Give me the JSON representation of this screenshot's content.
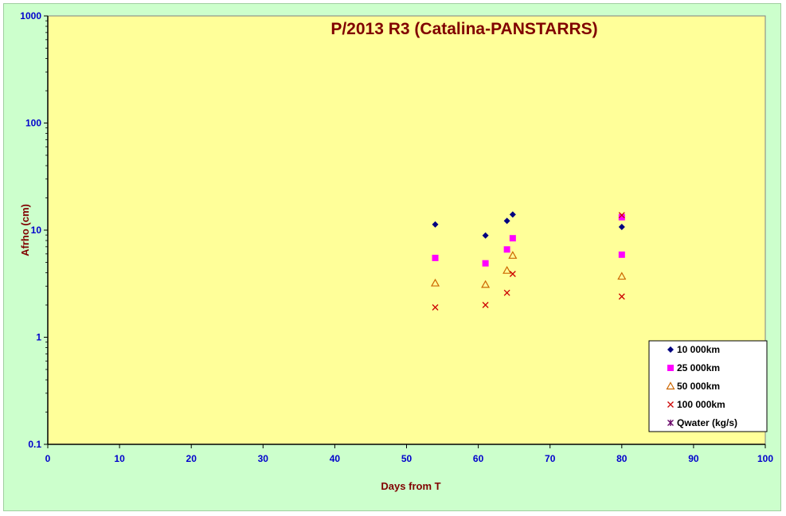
{
  "chart_data": {
    "type": "scatter",
    "title": "P/2013 R3 (Catalina-PANSTARRS)",
    "xlabel": "Days from  T",
    "ylabel": "Afrho (cm)",
    "xlim": [
      0,
      100
    ],
    "ylim": [
      0.1,
      1000
    ],
    "yscale": "log",
    "x_ticks": [
      "0",
      "10",
      "20",
      "30",
      "40",
      "50",
      "60",
      "70",
      "80",
      "90",
      "100"
    ],
    "y_ticks": [
      "0.1",
      "1",
      "10",
      "100",
      "1000"
    ],
    "grid": false,
    "legend_position": "bottom-right",
    "series": [
      {
        "name": "10 000km",
        "marker": "diamond",
        "color": "#000080",
        "points": [
          {
            "x": 54.0,
            "y": 11.3
          },
          {
            "x": 61.0,
            "y": 8.9
          },
          {
            "x": 64.0,
            "y": 12.2
          },
          {
            "x": 64.8,
            "y": 14.0
          },
          {
            "x": 80.0,
            "y": 10.7
          }
        ]
      },
      {
        "name": "25 000km",
        "marker": "square",
        "color": "#ff00ff",
        "points": [
          {
            "x": 54.0,
            "y": 5.5
          },
          {
            "x": 61.0,
            "y": 4.9
          },
          {
            "x": 64.0,
            "y": 6.6
          },
          {
            "x": 64.8,
            "y": 8.4
          },
          {
            "x": 80.0,
            "y": 13.2
          },
          {
            "x": 80.0,
            "y": 5.9
          }
        ]
      },
      {
        "name": "50 000km",
        "marker": "triangle",
        "color": "#cc6600",
        "points": [
          {
            "x": 54.0,
            "y": 3.2
          },
          {
            "x": 61.0,
            "y": 3.1
          },
          {
            "x": 64.0,
            "y": 4.2
          },
          {
            "x": 64.8,
            "y": 5.8
          },
          {
            "x": 80.0,
            "y": 3.7
          }
        ]
      },
      {
        "name": "100 000km",
        "marker": "x",
        "color": "#cc0000",
        "points": [
          {
            "x": 54.0,
            "y": 1.9
          },
          {
            "x": 61.0,
            "y": 2.0
          },
          {
            "x": 64.0,
            "y": 2.6
          },
          {
            "x": 64.8,
            "y": 3.9
          },
          {
            "x": 80.0,
            "y": 2.4
          },
          {
            "x": 80.0,
            "y": 13.8
          }
        ]
      },
      {
        "name": "Qwater (kg/s)",
        "marker": "star",
        "color": "#660066",
        "points": []
      }
    ],
    "colors": {
      "plot_background": "#ffff99",
      "chart_background": "#ccffcc",
      "title": "#800000",
      "tick_labels": "#0000cc"
    }
  }
}
